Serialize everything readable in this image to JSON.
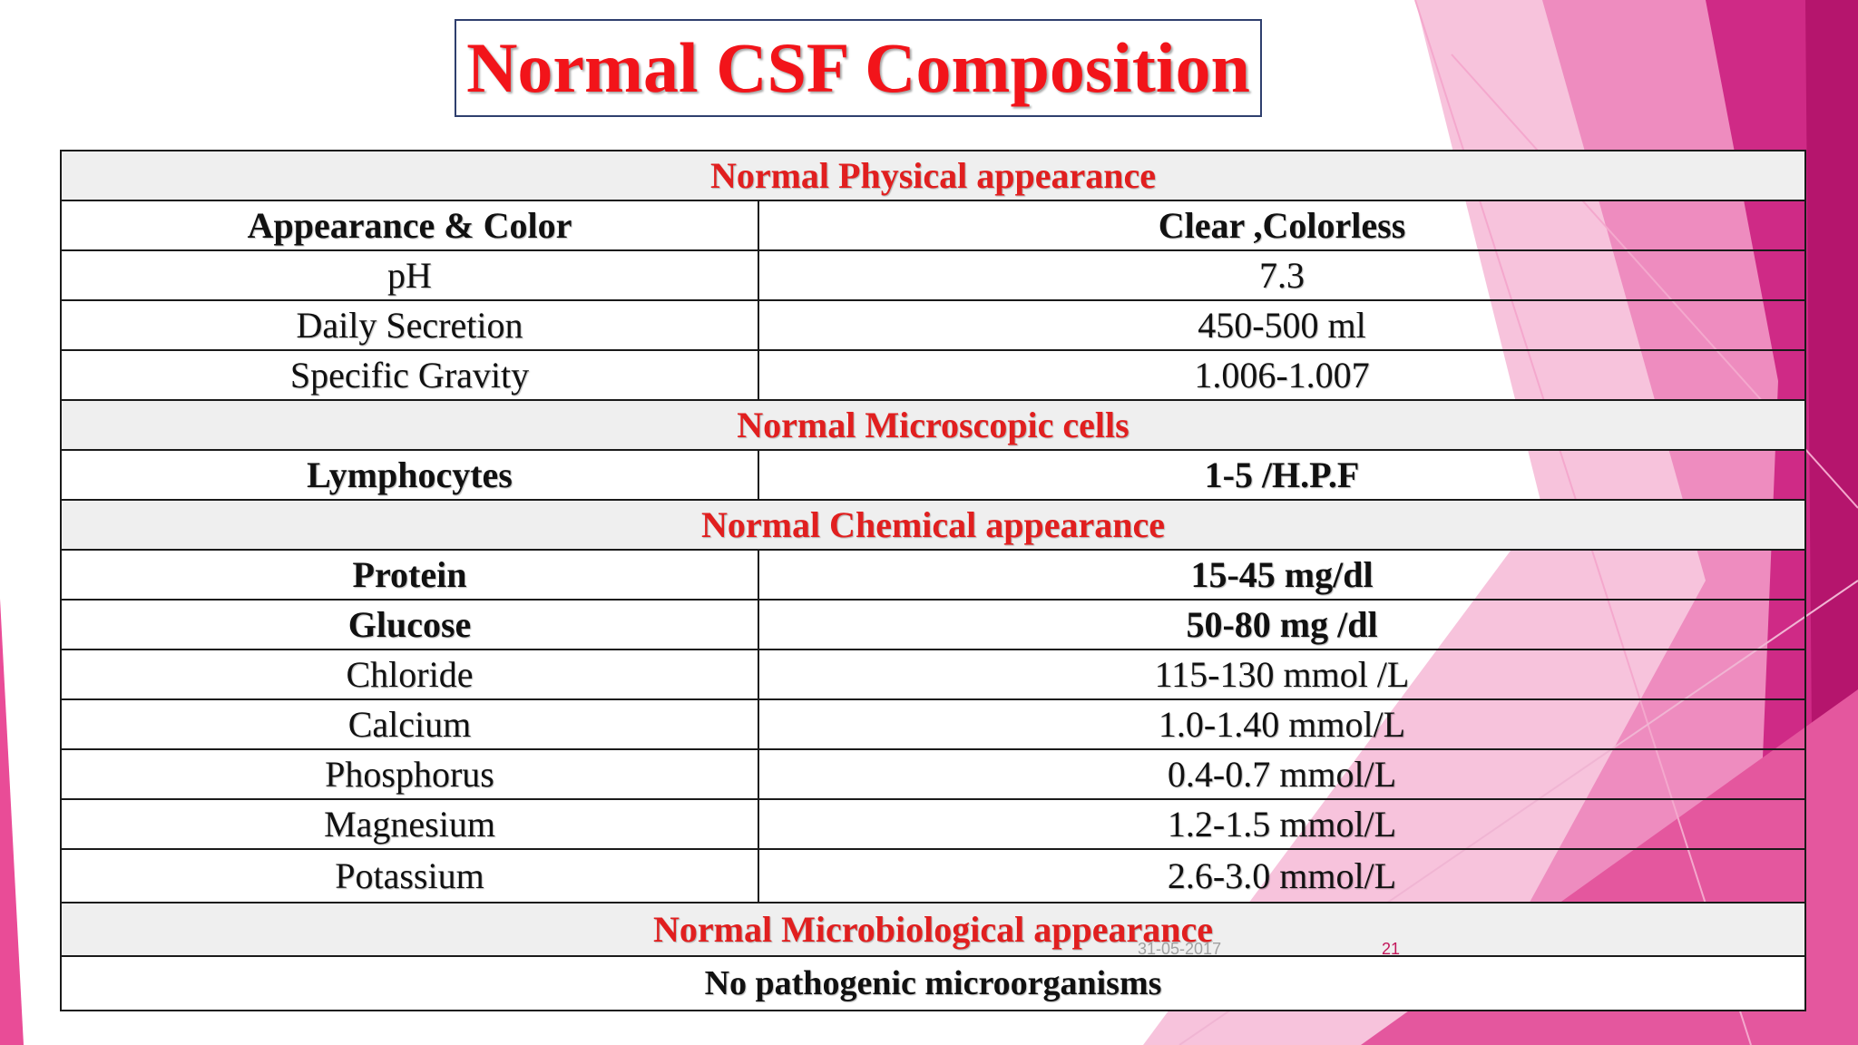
{
  "slide": {
    "title": "Normal CSF Composition",
    "date": "31-05-2017",
    "number": "21"
  },
  "theme": {
    "title_color": "#f2141a",
    "section_color": "#e11f1f",
    "accent_pink": "#d6197a",
    "accent_light_pink": "#f2a7cc"
  },
  "table": {
    "sections": [
      {
        "title": "Normal Physical appearance",
        "rows": [
          {
            "param": "Appearance & Color",
            "value": "Clear ,Colorless",
            "bold": true
          },
          {
            "param": "pH",
            "value": "7.3",
            "bold": false
          },
          {
            "param": "Daily Secretion",
            "value": "450-500 ml",
            "bold": false
          },
          {
            "param": "Specific Gravity",
            "value": "1.006-1.007",
            "bold": false
          }
        ]
      },
      {
        "title": "Normal Microscopic cells",
        "rows": [
          {
            "param": "Lymphocytes",
            "value": "1-5 /H.P.F",
            "bold": true
          }
        ]
      },
      {
        "title": "Normal Chemical appearance",
        "rows": [
          {
            "param": "Protein",
            "value": "15-45 mg/dl",
            "bold": true
          },
          {
            "param": "Glucose",
            "value": "50-80  mg /dl",
            "bold": true
          },
          {
            "param": "Chloride",
            "value": "115-130 mmol /L",
            "bold": false
          },
          {
            "param": "Calcium",
            "value": "1.0-1.40 mmol/L",
            "bold": false
          },
          {
            "param": "Phosphorus",
            "value": "0.4-0.7 mmol/L",
            "bold": false
          },
          {
            "param": "Magnesium",
            "value": "1.2-1.5 mmol/L",
            "bold": false
          },
          {
            "param": "Potassium",
            "value": "2.6-3.0 mmol/L",
            "bold": false
          }
        ]
      },
      {
        "title": "Normal Microbiological appearance",
        "footer": "No pathogenic microorganisms"
      }
    ]
  }
}
